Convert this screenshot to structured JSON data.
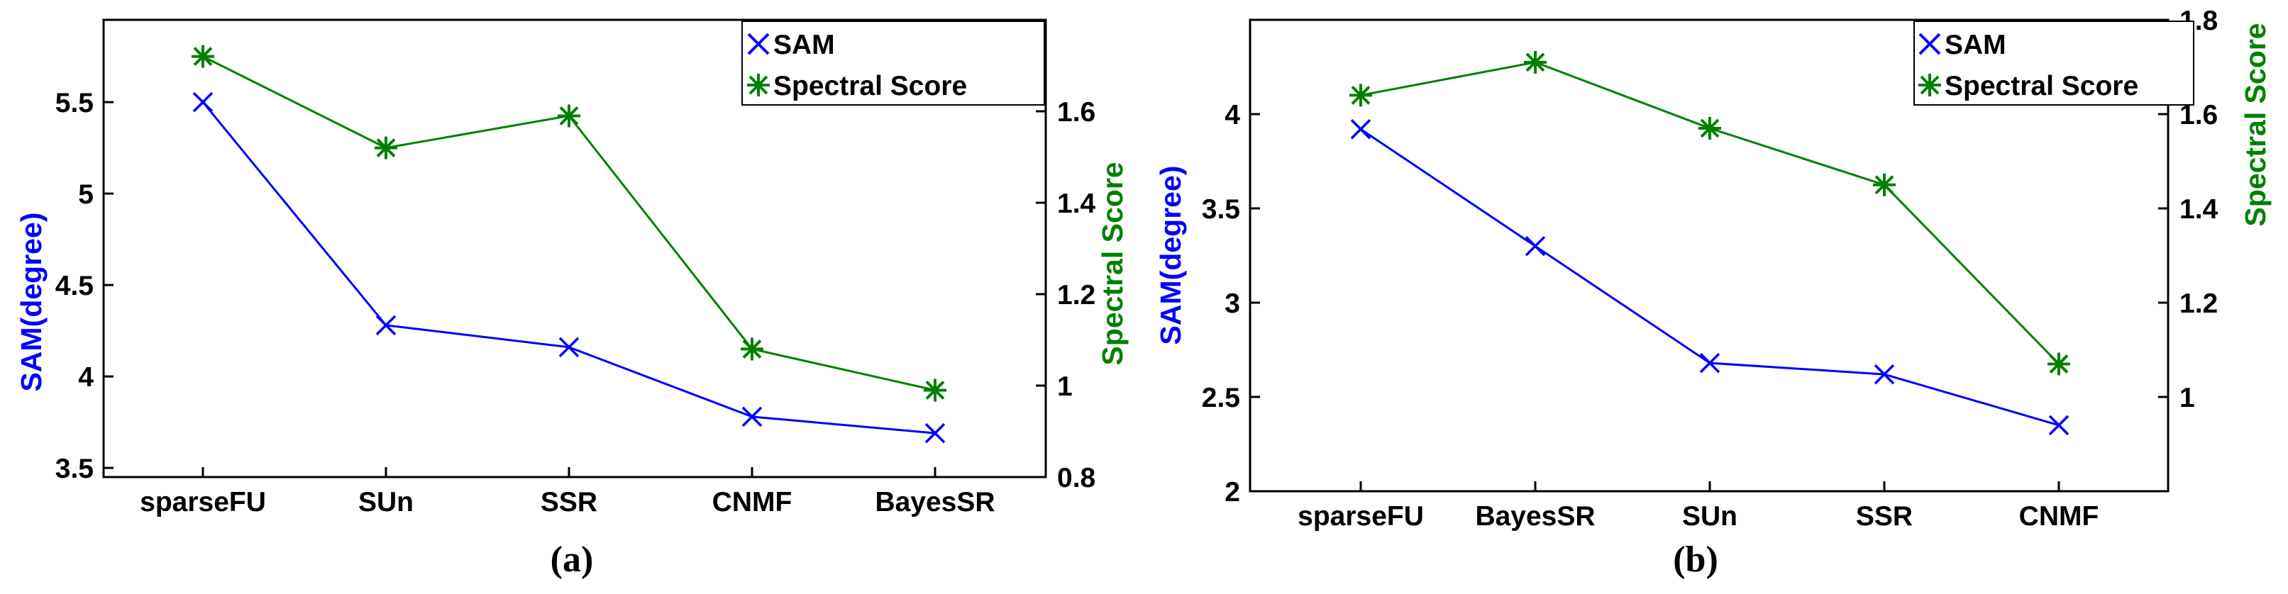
{
  "chart_data": [
    {
      "type": "line",
      "caption": "(a)",
      "categories": [
        "sparseFU",
        "SUn",
        "SSR",
        "CNMF",
        "BayesSR"
      ],
      "series": [
        {
          "name": "SAM",
          "axis": "left",
          "color": "#0000ff",
          "marker": "x",
          "values": [
            5.5,
            4.28,
            4.16,
            3.78,
            3.69
          ]
        },
        {
          "name": "Spectral Score",
          "axis": "right",
          "color": "#008000",
          "marker": "asterisk",
          "values": [
            1.72,
            1.52,
            1.59,
            1.08,
            0.99
          ]
        }
      ],
      "ylabel": "SAM(degree)",
      "ylabel_right": "Spectral Score",
      "ylim": [
        3.45,
        5.95
      ],
      "ylim_right": [
        0.8,
        1.8
      ],
      "yticks": [
        "3.5",
        "4",
        "4.5",
        "5",
        "5.5"
      ],
      "yticks_right": [
        "0.8",
        "1",
        "1.2",
        "1.4",
        "1.6"
      ],
      "legend": "top-right"
    },
    {
      "type": "line",
      "caption": "(b)",
      "categories": [
        "sparseFU",
        "BayesSR",
        "SUn",
        "SSR",
        "CNMF"
      ],
      "series": [
        {
          "name": "SAM",
          "axis": "left",
          "color": "#0000ff",
          "marker": "x",
          "values": [
            3.92,
            3.3,
            2.68,
            2.62,
            2.35
          ]
        },
        {
          "name": "Spectral Score",
          "axis": "right",
          "color": "#008000",
          "marker": "asterisk",
          "values": [
            1.64,
            1.71,
            1.57,
            1.45,
            1.07
          ]
        }
      ],
      "ylabel": "SAM(degree)",
      "ylabel_right": "Spectral Score",
      "ylim": [
        2.0,
        4.5
      ],
      "ylim_right": [
        0.8,
        1.8
      ],
      "yticks": [
        "2",
        "2.5",
        "3",
        "3.5",
        "4"
      ],
      "yticks_right": [
        "1",
        "1.2",
        "1.4",
        "1.6",
        "1.8"
      ],
      "legend": "top-right"
    }
  ]
}
